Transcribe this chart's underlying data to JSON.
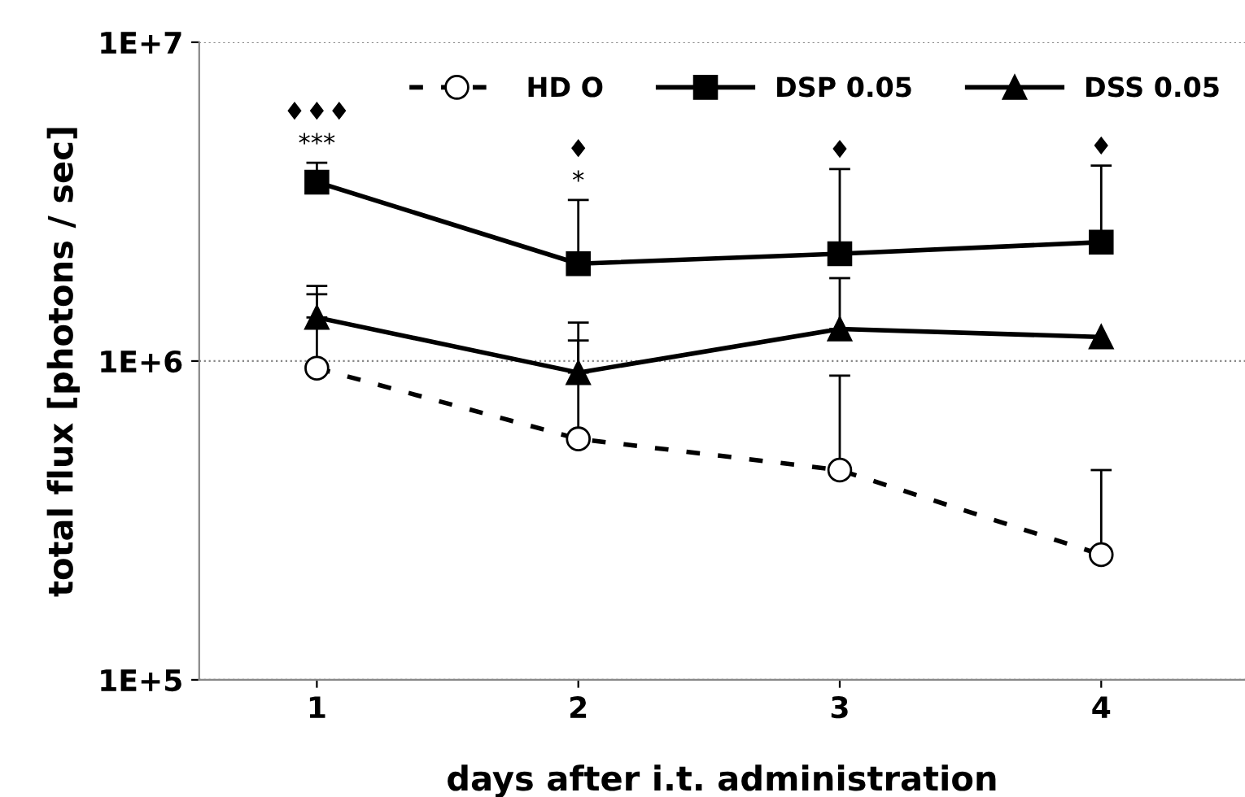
{
  "chart_data": {
    "type": "line",
    "xlabel": "days after i.t. administration",
    "ylabel": "total flux [photons / sec]",
    "log": "y",
    "x": [
      1,
      2,
      3,
      4
    ],
    "xlim": [
      0.55,
      4.55
    ],
    "xticks": [
      1,
      2,
      3,
      4
    ],
    "ylim": [
      100000,
      10000000
    ],
    "yticks": [
      {
        "value": 100000,
        "label": "1E+5"
      },
      {
        "value": 1000000,
        "label": "1E+6"
      },
      {
        "value": 10000000,
        "label": "1E+7"
      }
    ],
    "grid": "y",
    "legend": "top right",
    "series": [
      {
        "name": "HD O",
        "color": "#000000",
        "marker": "circle",
        "line_style": "dashed",
        "values": [
          950000,
          570000,
          455000,
          247000
        ],
        "errors": [
          [
            950000,
            1620000
          ],
          [
            570000,
            1160000
          ],
          [
            455000,
            900000
          ],
          [
            247000,
            455000
          ]
        ]
      },
      {
        "name": "DSP 0.05",
        "color": "#000000",
        "marker": "square",
        "line_style": "solid",
        "values": [
          3640000,
          2020000,
          2170000,
          2360000
        ],
        "errors": [
          [
            3640000,
            4190000
          ],
          [
            2020000,
            3200000
          ],
          [
            2170000,
            4000000
          ],
          [
            2360000,
            4100000
          ]
        ]
      },
      {
        "name": "DSS 0.05",
        "color": "#000000",
        "marker": "triangle",
        "line_style": "solid",
        "values": [
          1370000,
          920000,
          1260000,
          1190000
        ],
        "errors": [
          [
            1370000,
            1720000
          ],
          [
            920000,
            1320000
          ],
          [
            1260000,
            1820000
          ],
          null
        ]
      }
    ],
    "annotations": [
      {
        "text": "***",
        "x": 1,
        "y": 4190000
      },
      {
        "text": "♦♦♦",
        "x": 1,
        "y": 4190000
      },
      {
        "text": "*",
        "x": 2,
        "y": 3200000
      },
      {
        "text": "♦",
        "x": 2,
        "y": 3200000
      },
      {
        "text": "♦",
        "x": 3,
        "y": 4000000
      },
      {
        "text": "♦",
        "x": 4,
        "y": 4100000
      }
    ]
  }
}
